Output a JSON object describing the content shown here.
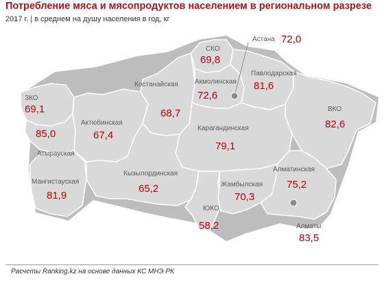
{
  "title": "Потребление мяса и мясопродуктов населением в региональном разрезе",
  "subtitle": "2017 г.  | в среднем на душу населения в год, кг",
  "footer": "Расчеты Ranking.kz на основе данных КС МНЭ РК",
  "colors": {
    "region_fill": "#d9d9d9",
    "value_text": "#c00000",
    "title_text": "#b3121b",
    "city_marker": "#8c8c8c"
  },
  "regions": [
    {
      "id": "zko",
      "name": "ЗКО",
      "value": "69,1"
    },
    {
      "id": "atyrau",
      "name": "Атырауская",
      "value": "85,0"
    },
    {
      "id": "mangistau",
      "name": "Мангистауская",
      "value": "81,9"
    },
    {
      "id": "aktobe",
      "name": "Актюбинская",
      "value": "67,4"
    },
    {
      "id": "kostanay",
      "name": "Костанайская",
      "value": "68,7"
    },
    {
      "id": "sko",
      "name": "СКО",
      "value": "69,8"
    },
    {
      "id": "akmola",
      "name": "Акмолинская",
      "value": "72,6"
    },
    {
      "id": "pavlodar",
      "name": "Павлодарская",
      "value": "81,6"
    },
    {
      "id": "vko",
      "name": "ВКО",
      "value": "82,6"
    },
    {
      "id": "karaganda",
      "name": "Карагандинская",
      "value": "79,1"
    },
    {
      "id": "kyzylorda",
      "name": "Кызылординская",
      "value": "65,2"
    },
    {
      "id": "uko",
      "name": "ЮКО",
      "value": "58,2"
    },
    {
      "id": "zhambyl",
      "name": "Жамбылская",
      "value": "70,3"
    },
    {
      "id": "almaty_obl",
      "name": "Алматинская",
      "value": "75,2"
    }
  ],
  "cities": [
    {
      "id": "astana",
      "name": "Астана",
      "value": "72,0"
    },
    {
      "id": "almaty",
      "name": "Алматы",
      "value": "83,5"
    }
  ]
}
